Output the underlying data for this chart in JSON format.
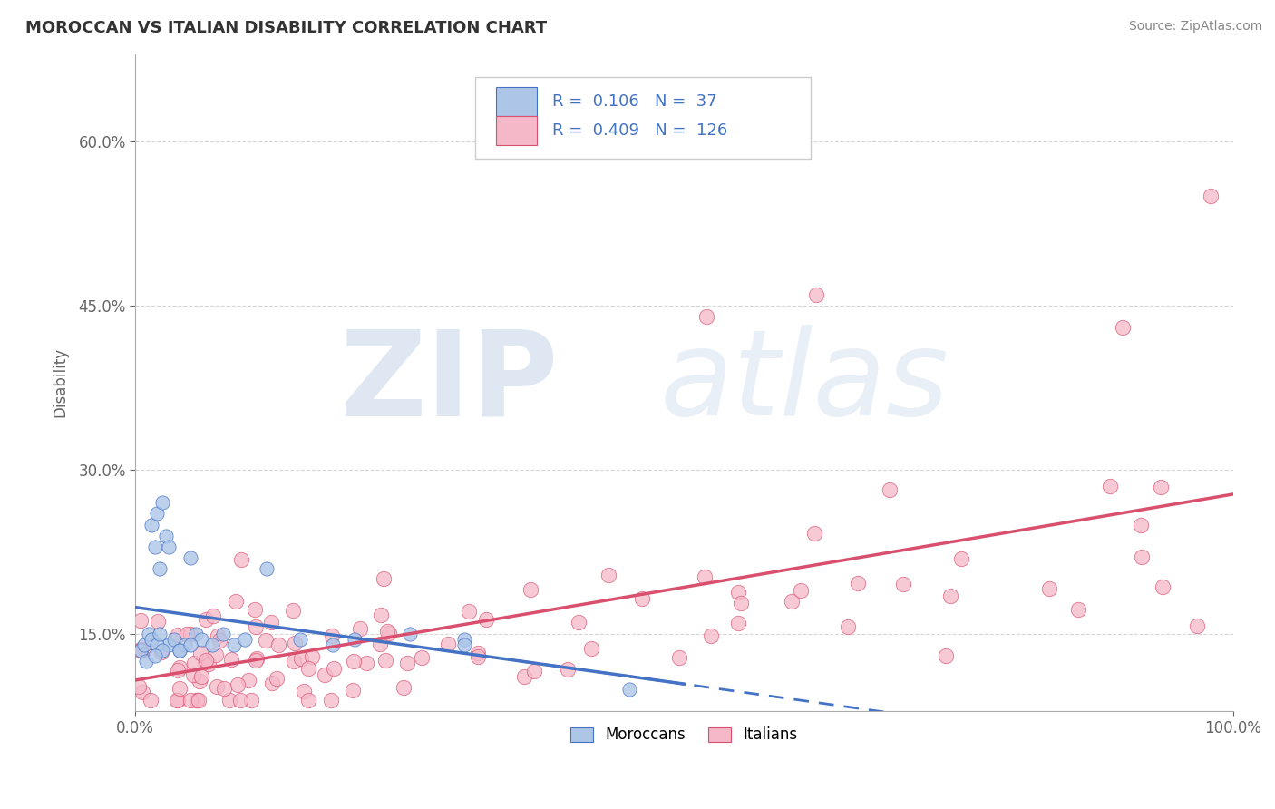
{
  "title": "MOROCCAN VS ITALIAN DISABILITY CORRELATION CHART",
  "source": "Source: ZipAtlas.com",
  "ylabel": "Disability",
  "xlim": [
    0,
    100
  ],
  "ylim": [
    8,
    68
  ],
  "y_ticks": [
    15,
    30,
    45,
    60
  ],
  "y_tick_labels": [
    "15.0%",
    "30.0%",
    "45.0%",
    "60.0%"
  ],
  "moroccan_R": 0.106,
  "moroccan_N": 37,
  "italian_R": 0.409,
  "italian_N": 126,
  "moroccan_color": "#adc6e8",
  "italian_color": "#f5b8c8",
  "moroccan_line_color": "#4472c4",
  "italian_line_color": "#d94f6e",
  "watermark_zip": "ZIP",
  "watermark_atlas": "atlas",
  "background_color": "#ffffff",
  "grid_color": "#cccccc"
}
